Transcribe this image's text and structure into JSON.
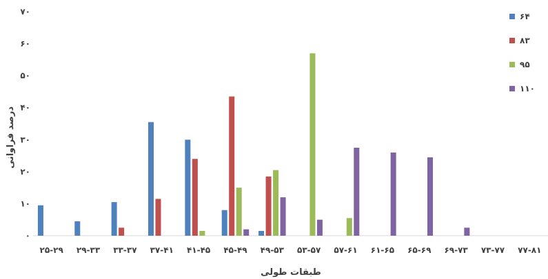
{
  "chart_data": {
    "type": "bar",
    "xlabel": "طبقات طولی",
    "ylabel": "درصد فراوانی",
    "ylim": [
      0,
      70
    ],
    "yticks": [
      "۰",
      "۱۰",
      "۲۰",
      "۳۰",
      "۴۰",
      "۵۰",
      "۶۰",
      "۷۰"
    ],
    "yticks_values": [
      0,
      10,
      20,
      30,
      40,
      50,
      60,
      70
    ],
    "grid": false,
    "legend_position": "right",
    "categories": [
      "۲۵-۲۹",
      "۲۹-۳۳",
      "۳۳-۳۷",
      "۳۷-۴۱",
      "۴۱-۴۵",
      "۴۵-۴۹",
      "۴۹-۵۳",
      "۵۳-۵۷",
      "۵۷-۶۱",
      "۶۱-۶۵",
      "۶۵-۶۹",
      "۶۹-۷۳",
      "۷۳-۷۷",
      "۷۷-۸۱"
    ],
    "series": [
      {
        "name": "۶۴",
        "color": "#4f81bd",
        "values": [
          9.5,
          4.5,
          10.5,
          35.5,
          30,
          8,
          1.5,
          0,
          0,
          0,
          0,
          0,
          0,
          0
        ]
      },
      {
        "name": "۸۳",
        "color": "#c0504d",
        "values": [
          0,
          0,
          2.5,
          11.5,
          24,
          43.5,
          18.5,
          0,
          0,
          0,
          0,
          0,
          0,
          0
        ]
      },
      {
        "name": "۹۵",
        "color": "#9bbb59",
        "values": [
          0,
          0,
          0,
          0,
          1.5,
          15,
          20.5,
          57,
          5.5,
          0,
          0,
          0,
          0,
          0
        ]
      },
      {
        "name": "۱۱۰",
        "color": "#8064a2",
        "values": [
          0,
          0,
          0,
          0,
          0,
          2,
          12,
          5,
          27.5,
          26,
          24.5,
          2.5,
          0,
          0
        ]
      }
    ]
  }
}
